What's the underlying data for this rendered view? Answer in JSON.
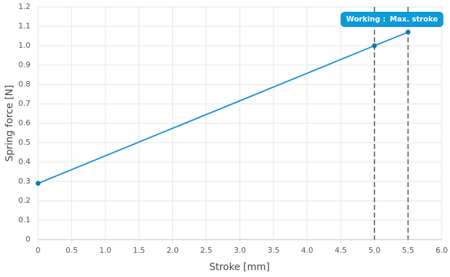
{
  "chart_data": {
    "type": "line",
    "x_label": "Stroke [mm]",
    "y_label": "Spring force [N]",
    "series": [
      {
        "name": "Spring force",
        "color": "#1b95d4",
        "x": [
          0,
          5.0,
          5.5
        ],
        "values": [
          0.29,
          1.0,
          1.07
        ]
      }
    ],
    "annotations": [
      {
        "x": 5.0,
        "label": "Working :"
      },
      {
        "x": 5.5,
        "label": "Max. stroke"
      }
    ],
    "xlim": [
      0,
      6.0
    ],
    "ylim": [
      0,
      1.2
    ],
    "xticks": [
      0,
      0.5,
      {
        "value": 1,
        "label": "1.0"
      },
      1.5,
      {
        "value": 2,
        "label": "2.0"
      },
      2.5,
      {
        "value": 3,
        "label": "3.0"
      },
      3.5,
      {
        "value": 4,
        "label": "4.0"
      },
      4.5,
      {
        "value": 5,
        "label": "5.0"
      },
      5.5,
      {
        "value": 6,
        "label": "6.0"
      }
    ],
    "yticks": [
      0,
      0.1,
      0.2,
      0.3,
      0.4,
      0.5,
      0.6,
      0.7,
      0.8,
      0.9,
      {
        "value": 1,
        "label": "1.0"
      },
      1.1,
      1.2
    ],
    "grid": true
  }
}
